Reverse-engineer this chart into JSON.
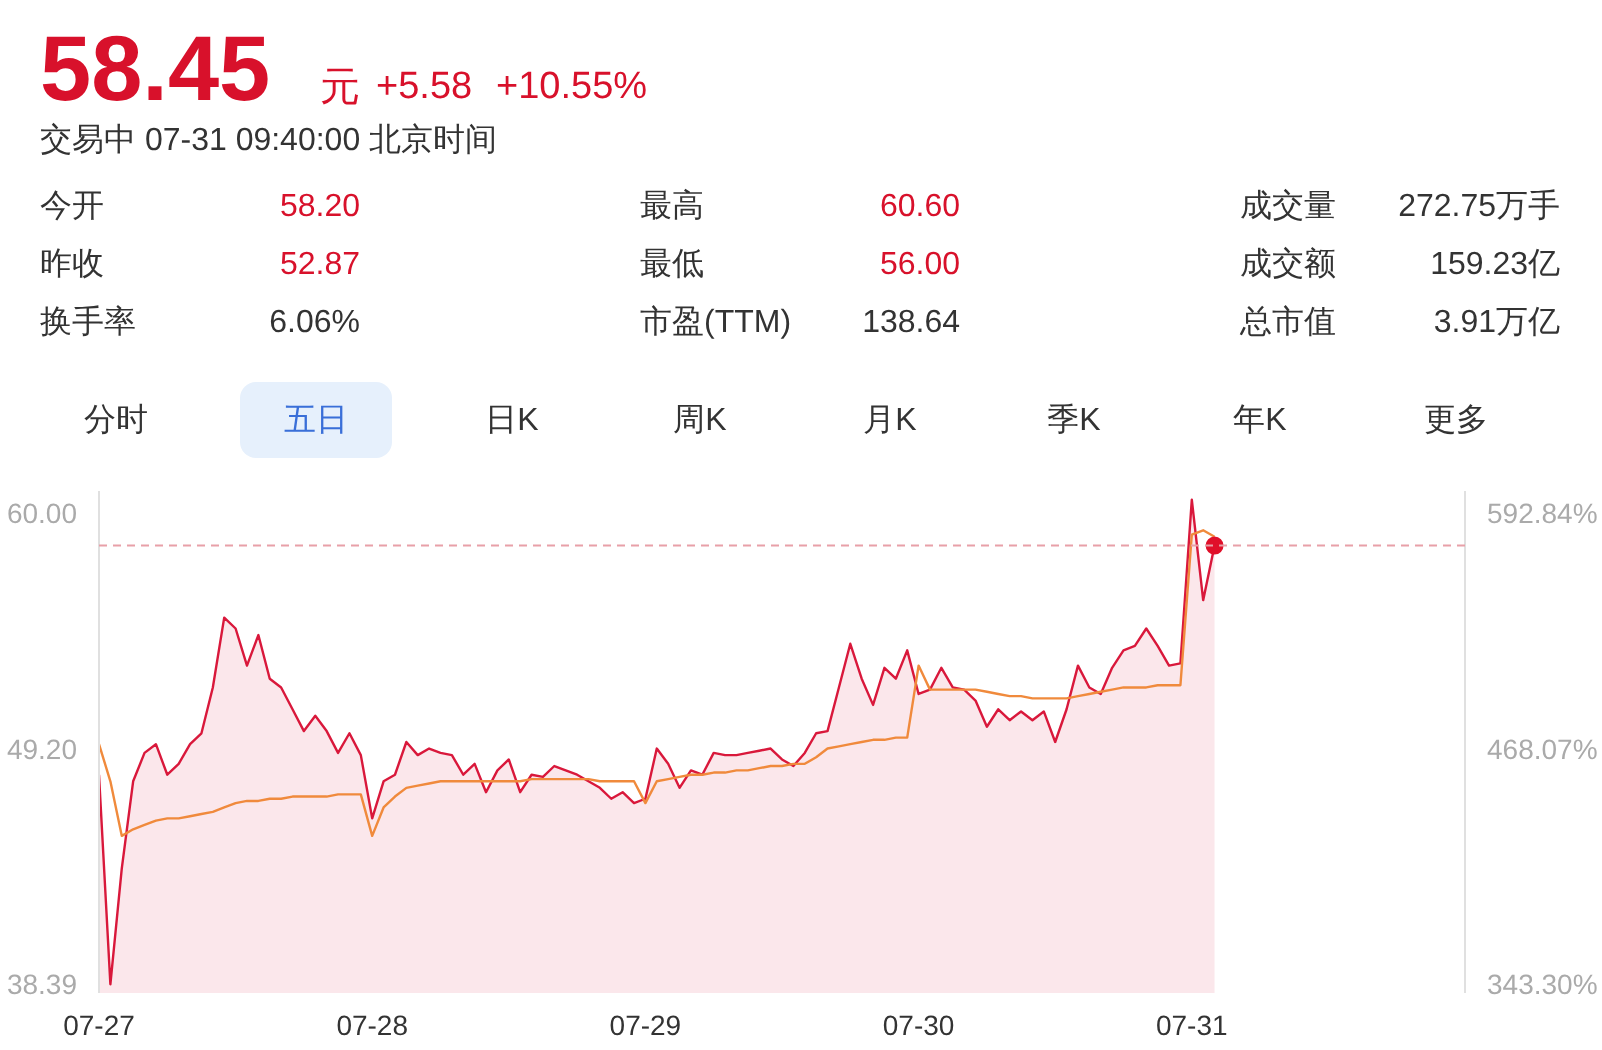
{
  "chart_data": {
    "type": "area",
    "title": "58.45",
    "annotations": [
      "元",
      "+5.58",
      "+10.55%",
      "交易中 07-31 09:40:00 北京时间",
      "今开",
      "58.20",
      "最高",
      "60.60",
      "成交量",
      "272.75万手",
      "昨收",
      "52.87",
      "最低",
      "56.00",
      "成交额",
      "159.23亿",
      "换手率",
      "6.06%",
      "市盈(TTM)",
      "138.64",
      "总市值",
      "3.91万亿",
      "分时",
      "五日",
      "日K",
      "周K",
      "月K",
      "季K",
      "年K",
      "更多"
    ],
    "categories": [
      "07-27",
      null,
      null,
      null,
      null,
      null,
      null,
      null,
      null,
      null,
      null,
      null,
      null,
      null,
      null,
      null,
      null,
      null,
      null,
      null,
      null,
      null,
      null,
      null,
      "07-28",
      null,
      null,
      null,
      null,
      null,
      null,
      null,
      null,
      null,
      null,
      null,
      null,
      null,
      null,
      null,
      null,
      null,
      null,
      null,
      null,
      null,
      null,
      null,
      "07-29",
      null,
      null,
      null,
      null,
      null,
      null,
      null,
      null,
      null,
      null,
      null,
      null,
      null,
      null,
      null,
      null,
      null,
      null,
      null,
      null,
      null,
      null,
      null,
      "07-30",
      null,
      null,
      null,
      null,
      null,
      null,
      null,
      null,
      null,
      null,
      null,
      null,
      null,
      null,
      null,
      null,
      null,
      null,
      null,
      null,
      null,
      null,
      null,
      "07-31",
      null,
      null,
      null,
      null,
      null,
      null,
      null,
      null,
      null,
      null,
      null,
      null,
      null,
      null,
      null,
      null,
      null,
      null,
      null,
      null,
      null,
      null,
      null
    ],
    "series": [
      {
        "color": "#d9183b",
        "values": [
          48.0,
          38.4,
          43.7,
          47.7,
          49.0,
          49.4,
          48.0,
          48.5,
          49.4,
          49.9,
          52.0,
          55.2,
          54.7,
          53.0,
          54.4,
          52.4,
          52.0,
          51.0,
          50.0,
          50.7,
          50.0,
          49.0,
          49.9,
          48.9,
          46.0,
          47.7,
          48.0,
          49.5,
          48.9,
          49.2,
          49.0,
          48.9,
          48.0,
          48.5,
          47.2,
          48.2,
          48.7,
          47.2,
          48.0,
          47.9,
          48.4,
          48.2,
          48.0,
          47.7,
          47.4,
          46.9,
          47.2,
          46.7,
          46.9,
          49.2,
          48.5,
          47.4,
          48.2,
          48.0,
          49.0,
          48.9,
          48.9,
          49.0,
          49.1,
          49.2,
          48.7,
          48.4,
          49.0,
          49.9,
          50.0,
          52.0,
          54.0,
          52.4,
          51.2,
          52.9,
          52.4,
          53.7,
          51.7,
          51.9,
          52.9,
          52.0,
          51.9,
          51.4,
          50.2,
          51.0,
          50.5,
          50.9,
          50.5,
          50.9,
          49.5,
          51.0,
          53.0,
          52.0,
          51.7,
          52.9,
          53.7,
          53.9,
          54.7,
          53.9,
          53.0,
          53.1,
          60.6,
          56.0,
          58.5,
          null,
          null,
          null,
          null,
          null,
          null,
          null,
          null,
          null,
          null,
          null,
          null,
          null,
          null,
          null,
          null,
          null,
          null,
          null,
          null,
          null
        ]
      },
      {
        "type": "line",
        "color": "#f08a3c",
        "values": [
          49.4,
          47.7,
          45.2,
          45.5,
          45.7,
          45.9,
          46.0,
          46.0,
          46.1,
          46.2,
          46.3,
          46.5,
          46.7,
          46.8,
          46.8,
          46.9,
          46.9,
          47.0,
          47.0,
          47.0,
          47.0,
          47.1,
          47.1,
          47.1,
          45.2,
          46.5,
          47.0,
          47.4,
          47.5,
          47.6,
          47.7,
          47.7,
          47.7,
          47.7,
          47.7,
          47.7,
          47.7,
          47.7,
          47.8,
          47.8,
          47.8,
          47.8,
          47.8,
          47.8,
          47.7,
          47.7,
          47.7,
          47.7,
          46.7,
          47.7,
          47.8,
          47.9,
          48.0,
          48.0,
          48.1,
          48.1,
          48.2,
          48.2,
          48.3,
          48.4,
          48.4,
          48.5,
          48.5,
          48.8,
          49.2,
          49.3,
          49.4,
          49.5,
          49.6,
          49.6,
          49.7,
          49.7,
          53.0,
          51.9,
          51.9,
          51.9,
          51.9,
          51.9,
          51.8,
          51.7,
          51.6,
          51.6,
          51.5,
          51.5,
          51.5,
          51.5,
          51.6,
          51.7,
          51.8,
          51.9,
          52.0,
          52.0,
          52.0,
          52.1,
          52.1,
          52.1,
          59.0,
          59.2,
          58.9,
          null,
          null,
          null,
          null,
          null,
          null,
          null,
          null,
          null,
          null,
          null,
          null,
          null,
          null,
          null,
          null,
          null,
          null,
          null,
          null,
          null
        ]
      },
      {
        "type": "scatter",
        "color": "#e0102a",
        "marker": "circle",
        "values": [
          null,
          null,
          null,
          null,
          null,
          null,
          null,
          null,
          null,
          null,
          null,
          null,
          null,
          null,
          null,
          null,
          null,
          null,
          null,
          null,
          null,
          null,
          null,
          null,
          null,
          null,
          null,
          null,
          null,
          null,
          null,
          null,
          null,
          null,
          null,
          null,
          null,
          null,
          null,
          null,
          null,
          null,
          null,
          null,
          null,
          null,
          null,
          null,
          null,
          null,
          null,
          null,
          null,
          null,
          null,
          null,
          null,
          null,
          null,
          null,
          null,
          null,
          null,
          null,
          null,
          null,
          null,
          null,
          null,
          null,
          null,
          null,
          null,
          null,
          null,
          null,
          null,
          null,
          null,
          null,
          null,
          null,
          null,
          null,
          null,
          null,
          null,
          null,
          null,
          null,
          null,
          null,
          null,
          null,
          null,
          null,
          null,
          null,
          58.5,
          null,
          null,
          null,
          null,
          null,
          null,
          null,
          null,
          null,
          null,
          null,
          null,
          null,
          null,
          null,
          null,
          null,
          null,
          null,
          null,
          null
        ]
      }
    ],
    "ylim": [
      38.0,
      61.0
    ],
    "yticks": [
      {
        "value": 60,
        "label": "60.00"
      },
      {
        "value": 49.2,
        "label": "49.20"
      },
      38.39
    ],
    "y2lim": [
      338.8,
      604.38
    ],
    "y2ticks": [
      {
        "value": 592.84,
        "label": "592.84%"
      },
      {
        "value": 468.07,
        "label": "468.07%"
      },
      {
        "value": 343.3,
        "label": "343.30%"
      }
    ],
    "ref_lines": [
      {
        "axis": "y",
        "value": 58.5,
        "color": "#e8a0a8",
        "line_style": "dashed"
      }
    ],
    "grid": false
  }
}
